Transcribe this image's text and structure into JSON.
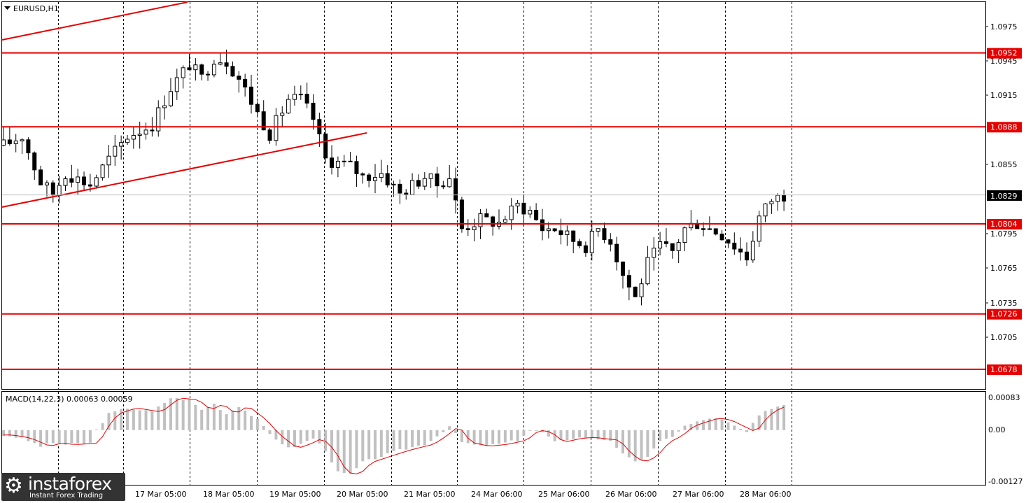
{
  "symbol": "EURUSD,H1",
  "macd_label": "MACD(14,22,3) 0.00063 0.00059",
  "price_ticks": [
    "1.0975",
    "1.0945",
    "1.0915",
    "1.0855",
    "1.0795",
    "1.0765",
    "1.0735",
    "1.0705"
  ],
  "macd_ticks": [
    "0.00083",
    "0.00",
    "-0.00127"
  ],
  "time_labels": [
    "17 Mar 05:00",
    "18 Mar 05:00",
    "19 Mar 05:00",
    "20 Mar 05:00",
    "21 Mar 05:00",
    "24 Mar 06:00",
    "25 Mar 06:00",
    "26 Mar 06:00",
    "27 Mar 06:00",
    "28 Mar 06:00"
  ],
  "current_price": "1.0829",
  "levels": [
    {
      "price": 1.0952,
      "label": "1.0952"
    },
    {
      "price": 1.0888,
      "label": "1.0888"
    },
    {
      "price": 1.0804,
      "label": "1.0804"
    },
    {
      "price": 1.0726,
      "label": "1.0726"
    },
    {
      "price": 1.0678,
      "label": "1.0678"
    }
  ],
  "colors": {
    "level": "#e60000",
    "candle": "#000000",
    "grid": "#000000",
    "macd_hist": "#c0c0c0",
    "macd_signal": "#e60000",
    "current_price_bg": "#000000"
  },
  "logo": {
    "brand": "instaforex",
    "tagline": "Instant Forex Trading",
    "icon": "gear-icon"
  },
  "chart_data": {
    "type": "candlestick",
    "series_name": "EURUSD,H1",
    "price_range": [
      1.0661,
      1.0996
    ],
    "macd_range": [
      -0.00127,
      0.00083
    ],
    "close_path": [
      [
        0,
        1.0872
      ],
      [
        3,
        1.088
      ],
      [
        6,
        1.084
      ],
      [
        8,
        1.083
      ],
      [
        10,
        1.0848
      ],
      [
        14,
        1.0838
      ],
      [
        17,
        1.086
      ],
      [
        20,
        1.088
      ],
      [
        24,
        1.089
      ],
      [
        27,
        1.0922
      ],
      [
        30,
        1.0942
      ],
      [
        32,
        1.093
      ],
      [
        34,
        1.0948
      ],
      [
        36,
        1.0945
      ],
      [
        38,
        1.093
      ],
      [
        41,
        1.09
      ],
      [
        43,
        1.0882
      ],
      [
        46,
        1.0912
      ],
      [
        48,
        1.0912
      ],
      [
        50,
        1.0895
      ],
      [
        52,
        1.086
      ],
      [
        56,
        1.0854
      ],
      [
        58,
        1.0845
      ],
      [
        61,
        1.0848
      ],
      [
        64,
        1.083
      ],
      [
        68,
        1.0845
      ],
      [
        70,
        1.0838
      ],
      [
        72,
        1.0845
      ],
      [
        74,
        1.08
      ],
      [
        77,
        1.0808
      ],
      [
        80,
        1.0805
      ],
      [
        83,
        1.082
      ],
      [
        85,
        1.0815
      ],
      [
        87,
        1.08
      ],
      [
        89,
        1.08
      ],
      [
        92,
        1.079
      ],
      [
        94,
        1.0785
      ],
      [
        96,
        1.08
      ],
      [
        98,
        1.079
      ],
      [
        100,
        1.076
      ],
      [
        102,
        1.074
      ],
      [
        104,
        1.077
      ],
      [
        106,
        1.0785
      ],
      [
        108,
        1.078
      ],
      [
        110,
        1.08
      ],
      [
        112,
        1.0805
      ],
      [
        114,
        1.08
      ],
      [
        116,
        1.0795
      ],
      [
        118,
        1.0785
      ],
      [
        120,
        1.0775
      ],
      [
        122,
        1.081
      ],
      [
        124,
        1.0825
      ],
      [
        126,
        1.0829
      ]
    ],
    "macd_path": [
      [
        0,
        -0.00012
      ],
      [
        3,
        -0.0002
      ],
      [
        6,
        -0.0004
      ],
      [
        8,
        -0.00032
      ],
      [
        10,
        -0.00036
      ],
      [
        14,
        -0.00032
      ],
      [
        15,
        0.0
      ],
      [
        17,
        0.0004
      ],
      [
        20,
        0.00055
      ],
      [
        24,
        0.00045
      ],
      [
        27,
        0.0008
      ],
      [
        30,
        0.00075
      ],
      [
        32,
        0.0005
      ],
      [
        34,
        0.00065
      ],
      [
        36,
        0.0004
      ],
      [
        38,
        0.0006
      ],
      [
        41,
        0.00025
      ],
      [
        43,
        -0.0001
      ],
      [
        46,
        -0.00045
      ],
      [
        48,
        -0.00035
      ],
      [
        50,
        -0.0002
      ],
      [
        52,
        -0.0005
      ],
      [
        54,
        -0.00105
      ],
      [
        56,
        -0.0011
      ],
      [
        58,
        -0.0008
      ],
      [
        61,
        -0.00065
      ],
      [
        64,
        -0.0005
      ],
      [
        68,
        -0.00035
      ],
      [
        70,
        -0.00015
      ],
      [
        72,
        0.0001
      ],
      [
        74,
        -0.0003
      ],
      [
        77,
        -0.0004
      ],
      [
        80,
        -0.00035
      ],
      [
        83,
        -0.00025
      ],
      [
        85,
        0.0
      ],
      [
        87,
        -5e-05
      ],
      [
        89,
        -0.0003
      ],
      [
        92,
        -0.0002
      ],
      [
        94,
        -0.00018
      ],
      [
        96,
        -0.00022
      ],
      [
        98,
        -0.00025
      ],
      [
        100,
        -0.0006
      ],
      [
        102,
        -0.0008
      ],
      [
        104,
        -0.00065
      ],
      [
        106,
        -0.0003
      ],
      [
        108,
        -0.00015
      ],
      [
        110,
        0.0001
      ],
      [
        112,
        0.0002
      ],
      [
        114,
        0.0003
      ],
      [
        116,
        0.00025
      ],
      [
        118,
        0.0001
      ],
      [
        120,
        -5e-05
      ],
      [
        122,
        0.00035
      ],
      [
        124,
        0.00055
      ],
      [
        126,
        0.00063
      ]
    ]
  }
}
